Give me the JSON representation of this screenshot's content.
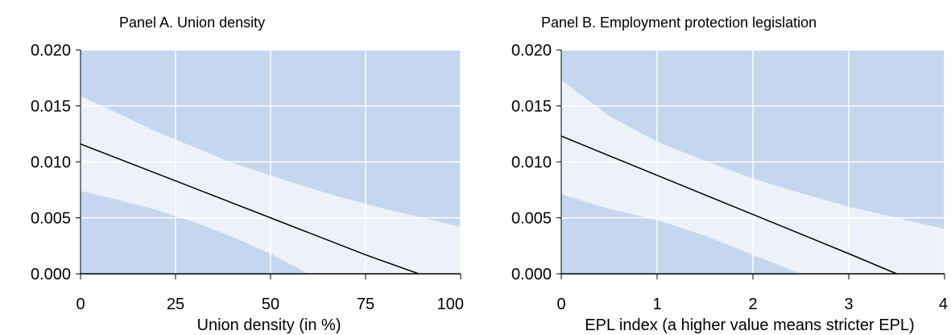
{
  "chart_data": [
    {
      "type": "line",
      "title": "Panel A. Union density",
      "xlabel": "Union density (in %)",
      "ylabel": "",
      "xlim": [
        0,
        100
      ],
      "ylim": [
        0,
        0.02
      ],
      "x_ticks": [
        0,
        25,
        50,
        75,
        100
      ],
      "x_tick_labels": [
        "0",
        "25",
        "50",
        "75",
        "100"
      ],
      "y_ticks": [
        0,
        0.005,
        0.01,
        0.015,
        0.02
      ],
      "y_tick_labels": [
        "0.000",
        "0.005",
        "0.010",
        "0.015",
        "0.020"
      ],
      "grid": true,
      "colors": {
        "background": "#c5d6ef",
        "band": "#edf2fa",
        "line": "#000000",
        "grid": "#ffffff"
      },
      "series": [
        {
          "x": [
            0,
            25,
            50,
            75,
            89
          ],
          "values": [
            0.0116,
            0.0083,
            0.005,
            0.0017,
            0.0
          ]
        }
      ],
      "confidence_band": {
        "x": [
          0,
          10,
          20,
          30,
          40,
          50,
          60,
          70,
          80,
          90,
          100
        ],
        "upper": [
          0.0159,
          0.0143,
          0.0127,
          0.0113,
          0.0099,
          0.0088,
          0.0077,
          0.0067,
          0.0058,
          0.005,
          0.0042
        ],
        "lower": [
          0.0074,
          0.0066,
          0.0057,
          0.0046,
          0.0033,
          0.0018,
          0.0,
          null,
          null,
          null,
          null
        ]
      }
    },
    {
      "type": "line",
      "title": "Panel B. Employment protection legislation",
      "xlabel": "EPL index (a higher value means stricter EPL)",
      "ylabel": "",
      "xlim": [
        0,
        4
      ],
      "ylim": [
        0,
        0.02
      ],
      "x_ticks": [
        0,
        1,
        2,
        3,
        4
      ],
      "x_tick_labels": [
        "0",
        "1",
        "2",
        "3",
        "4"
      ],
      "y_ticks": [
        0,
        0.005,
        0.01,
        0.015,
        0.02
      ],
      "y_tick_labels": [
        "0.000",
        "0.005",
        "0.010",
        "0.015",
        "0.020"
      ],
      "grid": true,
      "colors": {
        "background": "#c5d6ef",
        "band": "#edf2fa",
        "line": "#000000",
        "grid": "#ffffff"
      },
      "series": [
        {
          "x": [
            0,
            1,
            2,
            3,
            3.5
          ],
          "values": [
            0.0123,
            0.0088,
            0.0053,
            0.0018,
            0.0
          ]
        }
      ],
      "confidence_band": {
        "x": [
          0,
          0.5,
          1,
          1.5,
          2,
          2.5,
          3,
          3.5,
          4
        ],
        "upper": [
          0.0173,
          0.0141,
          0.0118,
          0.0101,
          0.0085,
          0.0072,
          0.006,
          0.005,
          0.004
        ],
        "lower": [
          0.0071,
          0.0058,
          0.0048,
          0.0034,
          0.0017,
          0.0,
          null,
          null,
          null
        ]
      }
    }
  ]
}
